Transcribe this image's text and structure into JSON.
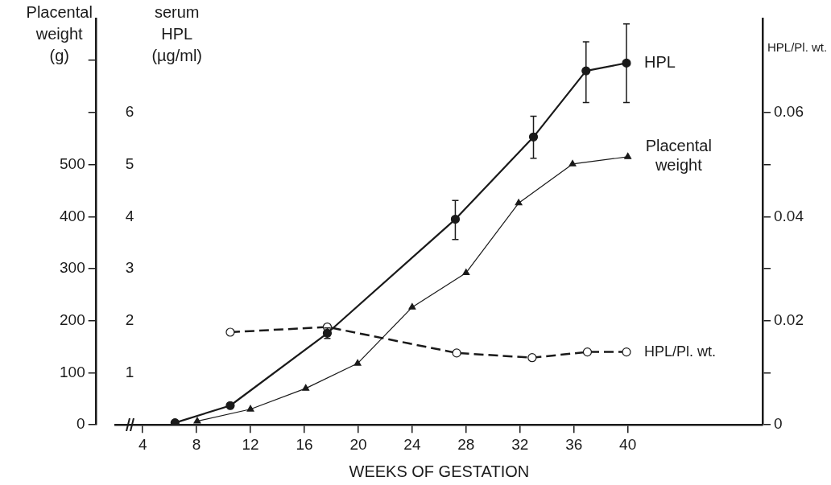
{
  "chart_data": {
    "type": "line",
    "xlabel": "WEEKS OF GESTATION",
    "ylabel": "Placental weight (g)",
    "y2label": "serum HPL (µg/ml)",
    "y3label": "HPL/Pl. wt.",
    "xlim": [
      2,
      50
    ],
    "xticks": [
      4,
      8,
      12,
      16,
      20,
      24,
      28,
      32,
      36,
      40
    ],
    "ylim": [
      0,
      780
    ],
    "yticks": [
      0,
      100,
      200,
      300,
      400,
      500,
      {
        "value": 600,
        "label": null
      },
      {
        "value": 700,
        "label": null
      }
    ],
    "y2lim": [
      0,
      7.8
    ],
    "y2ticks": [
      1,
      2,
      3,
      4,
      5,
      6
    ],
    "y3lim": [
      0,
      0.078
    ],
    "y3ticks": [
      0,
      {
        "value": 0.01,
        "label": null
      },
      0.02,
      {
        "value": 0.03,
        "label": null
      },
      0.04,
      {
        "value": 0.05,
        "label": null
      },
      0.06
    ],
    "legend": false,
    "grid": false,
    "series": [
      {
        "name": "HPL",
        "axis": "y2",
        "color": "#1a1a1a",
        "marker": "circle",
        "line_style": "solid",
        "x": [
          6.4,
          10.5,
          17.7,
          27.2,
          33.0,
          36.9,
          39.9
        ],
        "values": [
          0.04,
          0.37,
          1.76,
          3.95,
          5.53,
          6.8,
          6.95
        ],
        "errors": [
          null,
          null,
          [
            1.66,
            1.86
          ],
          [
            3.56,
            4.31
          ],
          [
            5.12,
            5.93
          ],
          [
            6.19,
            7.36
          ],
          [
            6.19,
            7.7
          ]
        ]
      },
      {
        "name": "Placental weight",
        "axis": "y",
        "color": "#1a1a1a",
        "marker": "triangle",
        "line_style": "solid",
        "x": [
          8.05,
          12.0,
          16.1,
          19.95,
          24.0,
          28.0,
          31.9,
          35.9,
          40.0
        ],
        "values": [
          7,
          30,
          70,
          118,
          226,
          292,
          426,
          501,
          515
        ]
      },
      {
        "name": "HPL/Pl. wt.",
        "axis": "y3",
        "color": "#1a1a1a",
        "marker": "circle",
        "line_style": "dashed",
        "x": [
          10.5,
          17.7,
          27.3,
          32.9,
          37.0,
          39.9
        ],
        "values": [
          0.0178,
          0.0188,
          0.0138,
          0.0129,
          0.014,
          0.014
        ]
      }
    ]
  }
}
